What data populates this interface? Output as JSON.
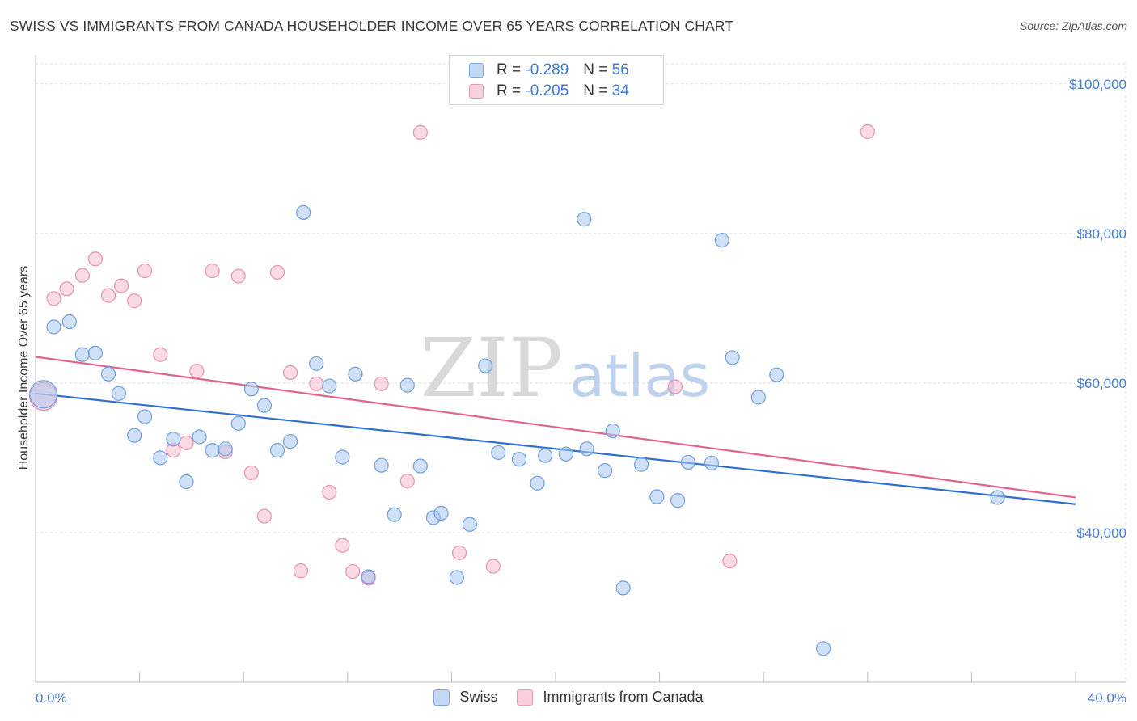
{
  "title": "SWISS VS IMMIGRANTS FROM CANADA HOUSEHOLDER INCOME OVER 65 YEARS CORRELATION CHART",
  "source": "Source: ZipAtlas.com",
  "watermark": {
    "left": "ZIP",
    "right": "atlas"
  },
  "legend": {
    "swiss": {
      "r_label": "R =",
      "r_value": "-0.289",
      "n_label": "N =",
      "n_value": "56"
    },
    "canada": {
      "r_label": "R =",
      "r_value": "-0.205",
      "n_label": "N =",
      "n_value": "34"
    }
  },
  "bottom_legend": {
    "swiss": "Swiss",
    "canada": "Immigrants from Canada"
  },
  "colors": {
    "swiss_fill": "#a9c7ef",
    "swiss_stroke": "#6f9fdd",
    "swiss_line": "#2f6fd0",
    "canada_fill": "#f6bcd0",
    "canada_stroke": "#e891b0",
    "canada_line": "#e0648c",
    "grid": "#dddddd",
    "tick_label": "#4a7fd0"
  },
  "chart_data": {
    "type": "scatter",
    "title": "SWISS VS IMMIGRANTS FROM CANADA HOUSEHOLDER INCOME OVER 65 YEARS CORRELATION CHART",
    "xlabel": "",
    "ylabel": "Householder Income Over 65 years",
    "xlim": [
      0,
      40
    ],
    "ylim": [
      20000,
      103000
    ],
    "x_tick_labels": [
      "0.0%",
      "40.0%"
    ],
    "y_ticks": [
      40000,
      60000,
      80000,
      100000
    ],
    "y_tick_labels": [
      "$40,000",
      "$60,000",
      "$80,000",
      "$100,000"
    ],
    "grid": true,
    "series": [
      {
        "name": "Swiss",
        "points": [
          [
            0.3,
            58500
          ],
          [
            0.7,
            67500
          ],
          [
            1.3,
            68200
          ],
          [
            1.8,
            63800
          ],
          [
            2.3,
            64000
          ],
          [
            2.8,
            61200
          ],
          [
            3.2,
            58600
          ],
          [
            3.8,
            53000
          ],
          [
            4.2,
            55500
          ],
          [
            4.8,
            50000
          ],
          [
            5.3,
            52500
          ],
          [
            5.8,
            46800
          ],
          [
            6.3,
            52800
          ],
          [
            6.8,
            51000
          ],
          [
            7.3,
            51200
          ],
          [
            7.8,
            54600
          ],
          [
            8.3,
            59200
          ],
          [
            8.8,
            57000
          ],
          [
            9.3,
            51000
          ],
          [
            9.8,
            52200
          ],
          [
            10.3,
            82800
          ],
          [
            10.8,
            62600
          ],
          [
            11.3,
            59600
          ],
          [
            11.8,
            50100
          ],
          [
            12.3,
            61200
          ],
          [
            12.8,
            34100
          ],
          [
            13.3,
            49000
          ],
          [
            13.8,
            42400
          ],
          [
            14.3,
            59700
          ],
          [
            14.8,
            48900
          ],
          [
            15.3,
            42000
          ],
          [
            15.6,
            42600
          ],
          [
            16.2,
            34000
          ],
          [
            16.7,
            41100
          ],
          [
            17.3,
            62300
          ],
          [
            17.8,
            50700
          ],
          [
            18.6,
            49800
          ],
          [
            19.3,
            46600
          ],
          [
            19.6,
            50300
          ],
          [
            20.4,
            50500
          ],
          [
            21.1,
            81900
          ],
          [
            21.2,
            51200
          ],
          [
            21.9,
            48300
          ],
          [
            22.2,
            53600
          ],
          [
            22.6,
            32600
          ],
          [
            23.3,
            49100
          ],
          [
            23.9,
            44800
          ],
          [
            24.7,
            44300
          ],
          [
            25.1,
            49400
          ],
          [
            26.0,
            49300
          ],
          [
            26.4,
            79100
          ],
          [
            26.8,
            63400
          ],
          [
            27.8,
            58100
          ],
          [
            28.5,
            61100
          ],
          [
            30.3,
            24500
          ],
          [
            37.0,
            44700
          ]
        ],
        "trend": {
          "x": [
            0,
            40
          ],
          "y": [
            58600,
            43800
          ]
        }
      },
      {
        "name": "Immigrants from Canada",
        "points": [
          [
            0.3,
            58200
          ],
          [
            0.7,
            71300
          ],
          [
            1.2,
            72600
          ],
          [
            1.8,
            74400
          ],
          [
            2.3,
            76600
          ],
          [
            2.8,
            71700
          ],
          [
            3.3,
            73000
          ],
          [
            3.8,
            71000
          ],
          [
            4.2,
            75000
          ],
          [
            4.8,
            63800
          ],
          [
            5.3,
            51000
          ],
          [
            5.8,
            52000
          ],
          [
            6.2,
            61600
          ],
          [
            6.8,
            75000
          ],
          [
            7.3,
            50800
          ],
          [
            7.8,
            74300
          ],
          [
            8.3,
            48000
          ],
          [
            8.8,
            42200
          ],
          [
            9.3,
            74800
          ],
          [
            9.8,
            61400
          ],
          [
            10.2,
            34900
          ],
          [
            10.8,
            59900
          ],
          [
            11.3,
            45400
          ],
          [
            11.8,
            38300
          ],
          [
            12.2,
            34800
          ],
          [
            12.8,
            33900
          ],
          [
            13.3,
            59900
          ],
          [
            14.3,
            46900
          ],
          [
            14.8,
            93500
          ],
          [
            16.3,
            37300
          ],
          [
            17.6,
            35500
          ],
          [
            24.6,
            59500
          ],
          [
            26.7,
            36200
          ],
          [
            32.0,
            93600
          ]
        ],
        "trend": {
          "x": [
            0,
            40
          ],
          "y": [
            63500,
            44700
          ]
        }
      }
    ]
  }
}
